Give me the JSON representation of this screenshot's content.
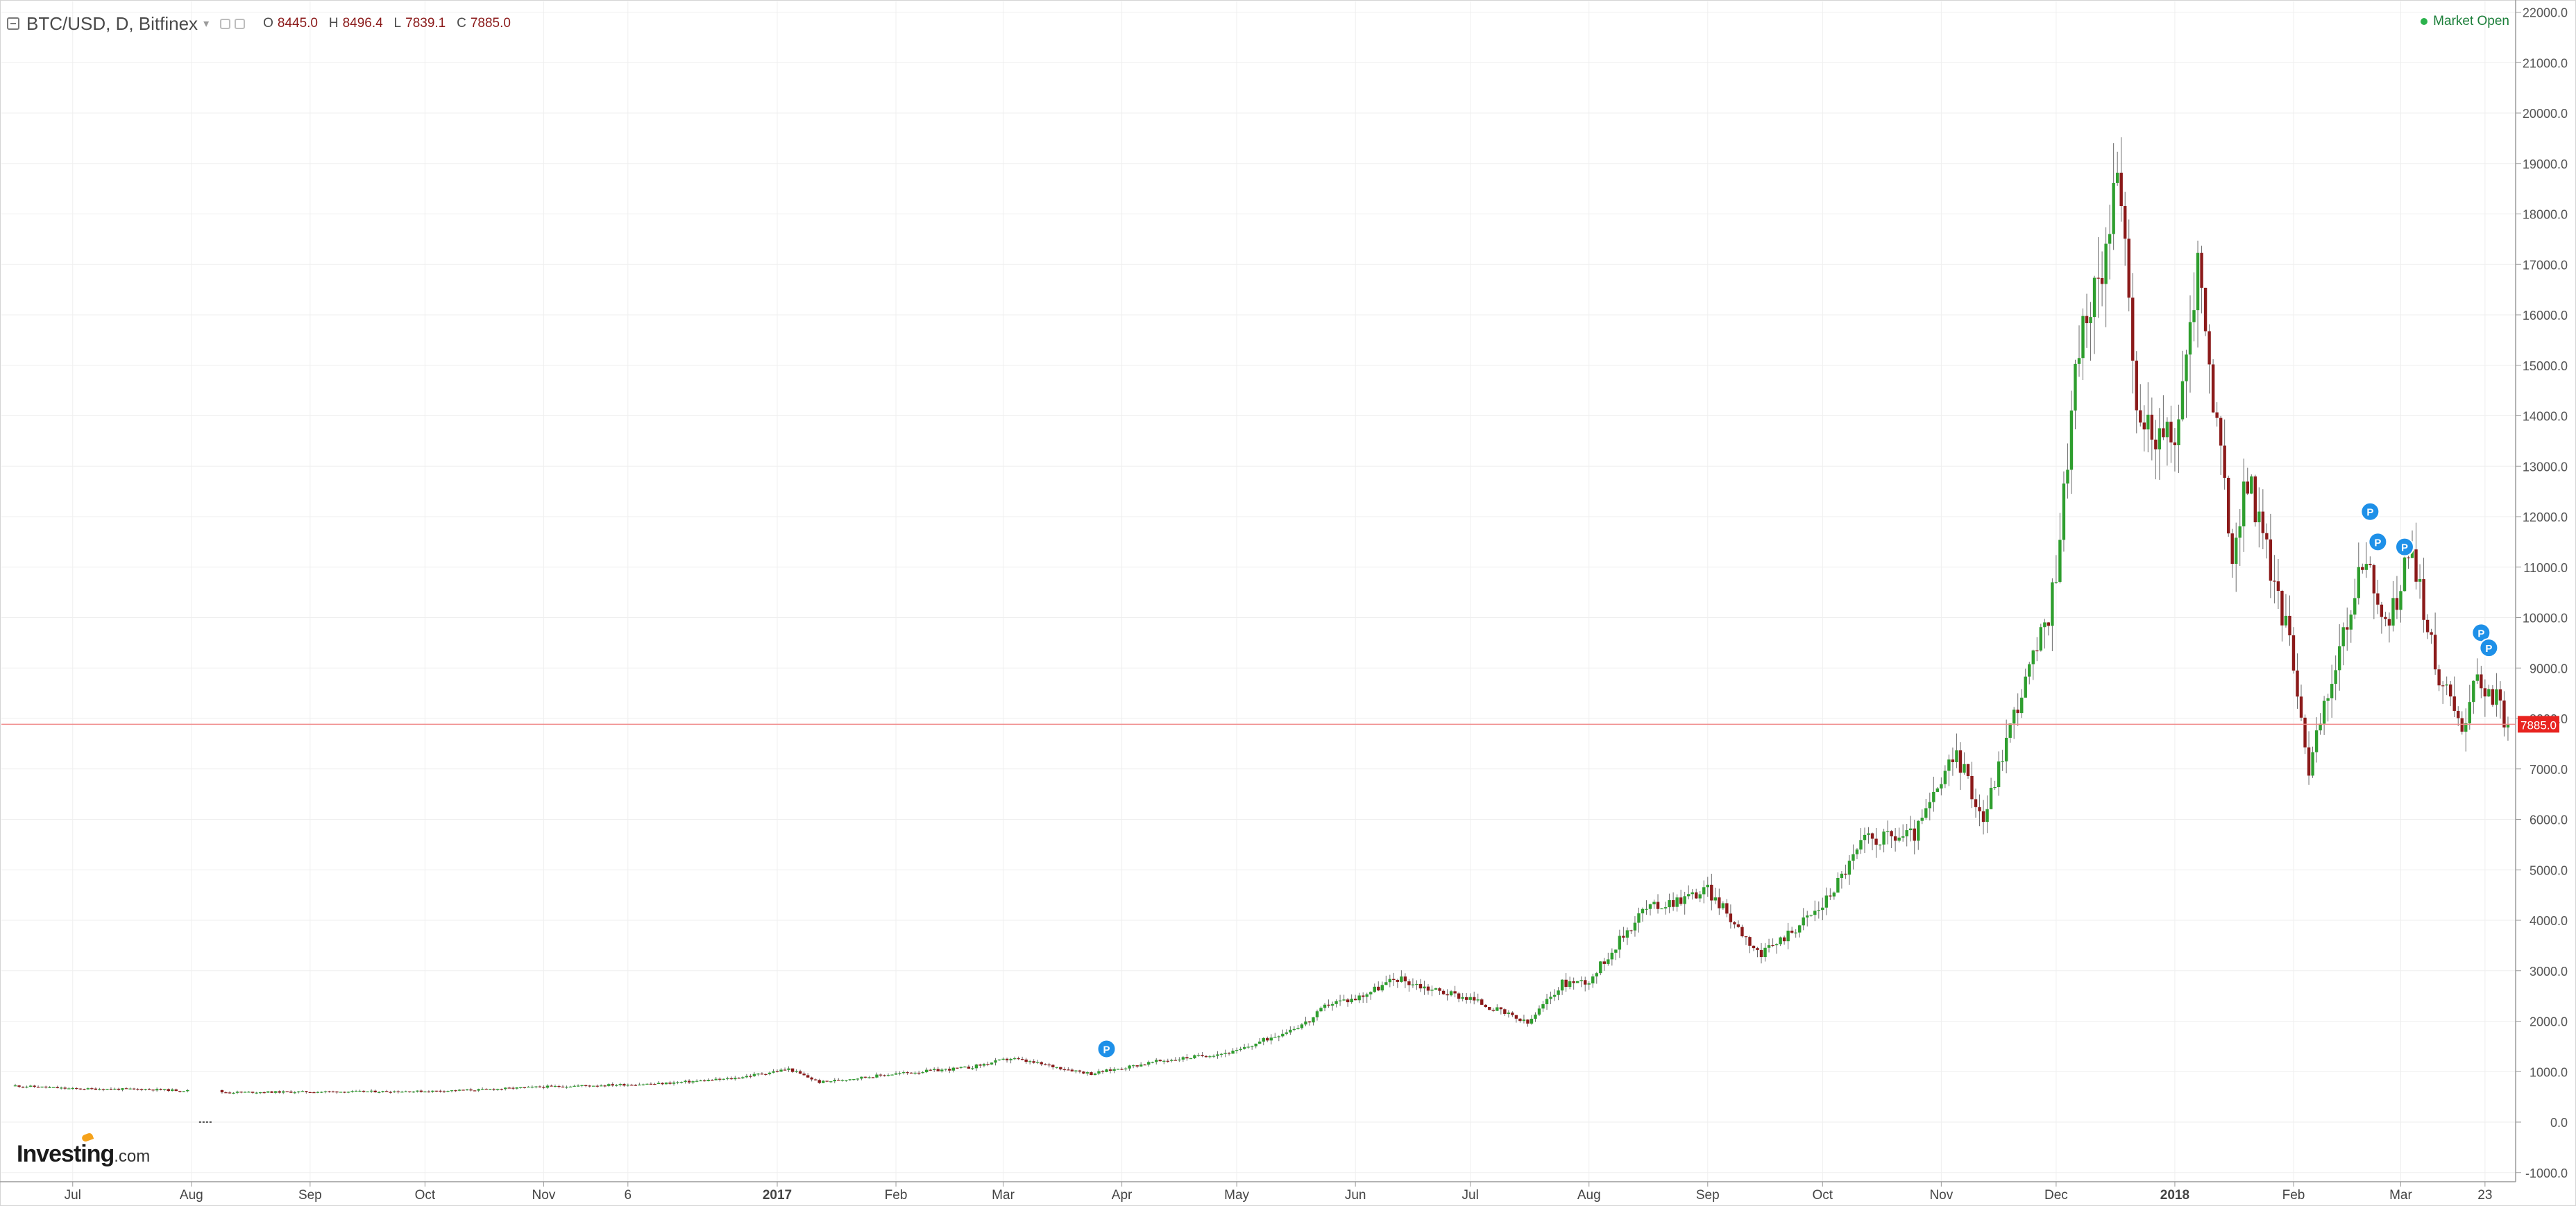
{
  "header": {
    "symbol": "BTC/USD, D, Bitfinex",
    "caret": "▾",
    "ohlc": {
      "o_label": "O",
      "o": "8445.0",
      "h_label": "H",
      "h": "8496.4",
      "l_label": "L",
      "l": "7839.1",
      "c_label": "C",
      "c": "7885.0"
    }
  },
  "market_status": "Market Open",
  "logo": {
    "brand": "Investing",
    "suffix": ".com"
  },
  "colors": {
    "up": "#2e9e2e",
    "down": "#8b1a1a",
    "wick": "#6b6b6b",
    "price_line": "#f08a8a",
    "price_tag": "#e8231f",
    "marker": "#1e90e8",
    "grid": "#efefef",
    "axis_text": "#555555"
  },
  "chart_data": {
    "type": "candlestick",
    "title": "BTC/USD, D, Bitfinex",
    "ylim": [
      -1000,
      22000
    ],
    "y_ticks": [
      "22000.0",
      "21000.0",
      "20000.0",
      "19000.0",
      "18000.0",
      "17000.0",
      "16000.0",
      "15000.0",
      "14000.0",
      "13000.0",
      "12000.0",
      "11000.0",
      "10000.0",
      "9000.0",
      "8000.0",
      "7000.0",
      "6000.0",
      "5000.0",
      "4000.0",
      "3000.0",
      "2000.0",
      "1000.0",
      "0.0",
      "-1000.0"
    ],
    "x_ticks": [
      {
        "label": "Jul",
        "x": "2016-07-01",
        "bold": false
      },
      {
        "label": "Aug",
        "x": "2016-08-01",
        "bold": false
      },
      {
        "label": "Sep",
        "x": "2016-09-01",
        "bold": false
      },
      {
        "label": "Oct",
        "x": "2016-10-01",
        "bold": false
      },
      {
        "label": "Nov",
        "x": "2016-11-01",
        "bold": false
      },
      {
        "label": "6",
        "x": "2016-11-23",
        "bold": false
      },
      {
        "label": "2017",
        "x": "2017-01-01",
        "bold": true
      },
      {
        "label": "Feb",
        "x": "2017-02-01",
        "bold": false
      },
      {
        "label": "Mar",
        "x": "2017-03-01",
        "bold": false
      },
      {
        "label": "Apr",
        "x": "2017-04-01",
        "bold": false
      },
      {
        "label": "May",
        "x": "2017-05-01",
        "bold": false
      },
      {
        "label": "Jun",
        "x": "2017-06-01",
        "bold": false
      },
      {
        "label": "Jul",
        "x": "2017-07-01",
        "bold": false
      },
      {
        "label": "Aug",
        "x": "2017-08-01",
        "bold": false
      },
      {
        "label": "Sep",
        "x": "2017-09-01",
        "bold": false
      },
      {
        "label": "Oct",
        "x": "2017-10-01",
        "bold": false
      },
      {
        "label": "Nov",
        "x": "2017-11-01",
        "bold": false
      },
      {
        "label": "Dec",
        "x": "2017-12-01",
        "bold": false
      },
      {
        "label": "2018",
        "x": "2018-01-01",
        "bold": true
      },
      {
        "label": "Feb",
        "x": "2018-02-01",
        "bold": false
      },
      {
        "label": "Mar",
        "x": "2018-03-01",
        "bold": false
      },
      {
        "label": "23",
        "x": "2018-03-23",
        "bold": false
      }
    ],
    "x_range": [
      "2016-06-16",
      "2018-03-31"
    ],
    "last_date": "2018-03-29",
    "trend": [
      [
        "2016-06-16",
        720
      ],
      [
        "2016-07-01",
        660
      ],
      [
        "2016-07-20",
        650
      ],
      [
        "2016-08-01",
        620
      ],
      [
        "2016-08-10",
        590
      ],
      [
        "2016-09-01",
        600
      ],
      [
        "2016-10-01",
        610
      ],
      [
        "2016-10-15",
        640
      ],
      [
        "2016-11-01",
        700
      ],
      [
        "2016-11-20",
        740
      ],
      [
        "2016-12-01",
        760
      ],
      [
        "2016-12-20",
        860
      ],
      [
        "2017-01-04",
        1050
      ],
      [
        "2017-01-12",
        790
      ],
      [
        "2017-02-01",
        960
      ],
      [
        "2017-02-20",
        1080
      ],
      [
        "2017-03-03",
        1260
      ],
      [
        "2017-03-10",
        1160
      ],
      [
        "2017-03-24",
        960
      ],
      [
        "2017-04-10",
        1200
      ],
      [
        "2017-05-01",
        1400
      ],
      [
        "2017-05-20",
        2000
      ],
      [
        "2017-05-25",
        2350
      ],
      [
        "2017-06-01",
        2450
      ],
      [
        "2017-06-12",
        2850
      ],
      [
        "2017-06-20",
        2650
      ],
      [
        "2017-07-01",
        2450
      ],
      [
        "2017-07-16",
        1950
      ],
      [
        "2017-07-25",
        2750
      ],
      [
        "2017-08-01",
        2800
      ],
      [
        "2017-08-15",
        4200
      ],
      [
        "2017-09-01",
        4600
      ],
      [
        "2017-09-15",
        3300
      ],
      [
        "2017-10-01",
        4300
      ],
      [
        "2017-10-12",
        5600
      ],
      [
        "2017-10-25",
        5700
      ],
      [
        "2017-11-05",
        7300
      ],
      [
        "2017-11-12",
        6000
      ],
      [
        "2017-11-20",
        8100
      ],
      [
        "2017-11-29",
        10000
      ],
      [
        "2017-12-01",
        11000
      ],
      [
        "2017-12-07",
        15500
      ],
      [
        "2017-12-12",
        16500
      ],
      [
        "2017-12-17",
        19100
      ],
      [
        "2017-12-22",
        14000
      ],
      [
        "2017-12-25",
        13800
      ],
      [
        "2018-01-01",
        13400
      ],
      [
        "2018-01-07",
        17000
      ],
      [
        "2018-01-16",
        11200
      ],
      [
        "2018-01-20",
        12800
      ],
      [
        "2018-01-26",
        11000
      ],
      [
        "2018-02-01",
        9200
      ],
      [
        "2018-02-05",
        7000
      ],
      [
        "2018-02-10",
        8500
      ],
      [
        "2018-02-20",
        11300
      ],
      [
        "2018-02-25",
        9700
      ],
      [
        "2018-03-04",
        11400
      ],
      [
        "2018-03-10",
        9000
      ],
      [
        "2018-03-17",
        7900
      ],
      [
        "2018-03-21",
        8800
      ],
      [
        "2018-03-25",
        8500
      ],
      [
        "2018-03-29",
        7885
      ]
    ],
    "annotations": [
      {
        "label": "P",
        "x": "2017-03-28",
        "y": 1450
      },
      {
        "label": "P",
        "x": "2018-02-21",
        "y": 12100
      },
      {
        "label": "P",
        "x": "2018-02-23",
        "y": 11500
      },
      {
        "label": "P",
        "x": "2018-03-02",
        "y": 11400
      },
      {
        "label": "P",
        "x": "2018-03-22",
        "y": 9700
      },
      {
        "label": "P",
        "x": "2018-03-24",
        "y": 9400
      }
    ],
    "last_price": "7885.0",
    "last_value": 7885
  }
}
